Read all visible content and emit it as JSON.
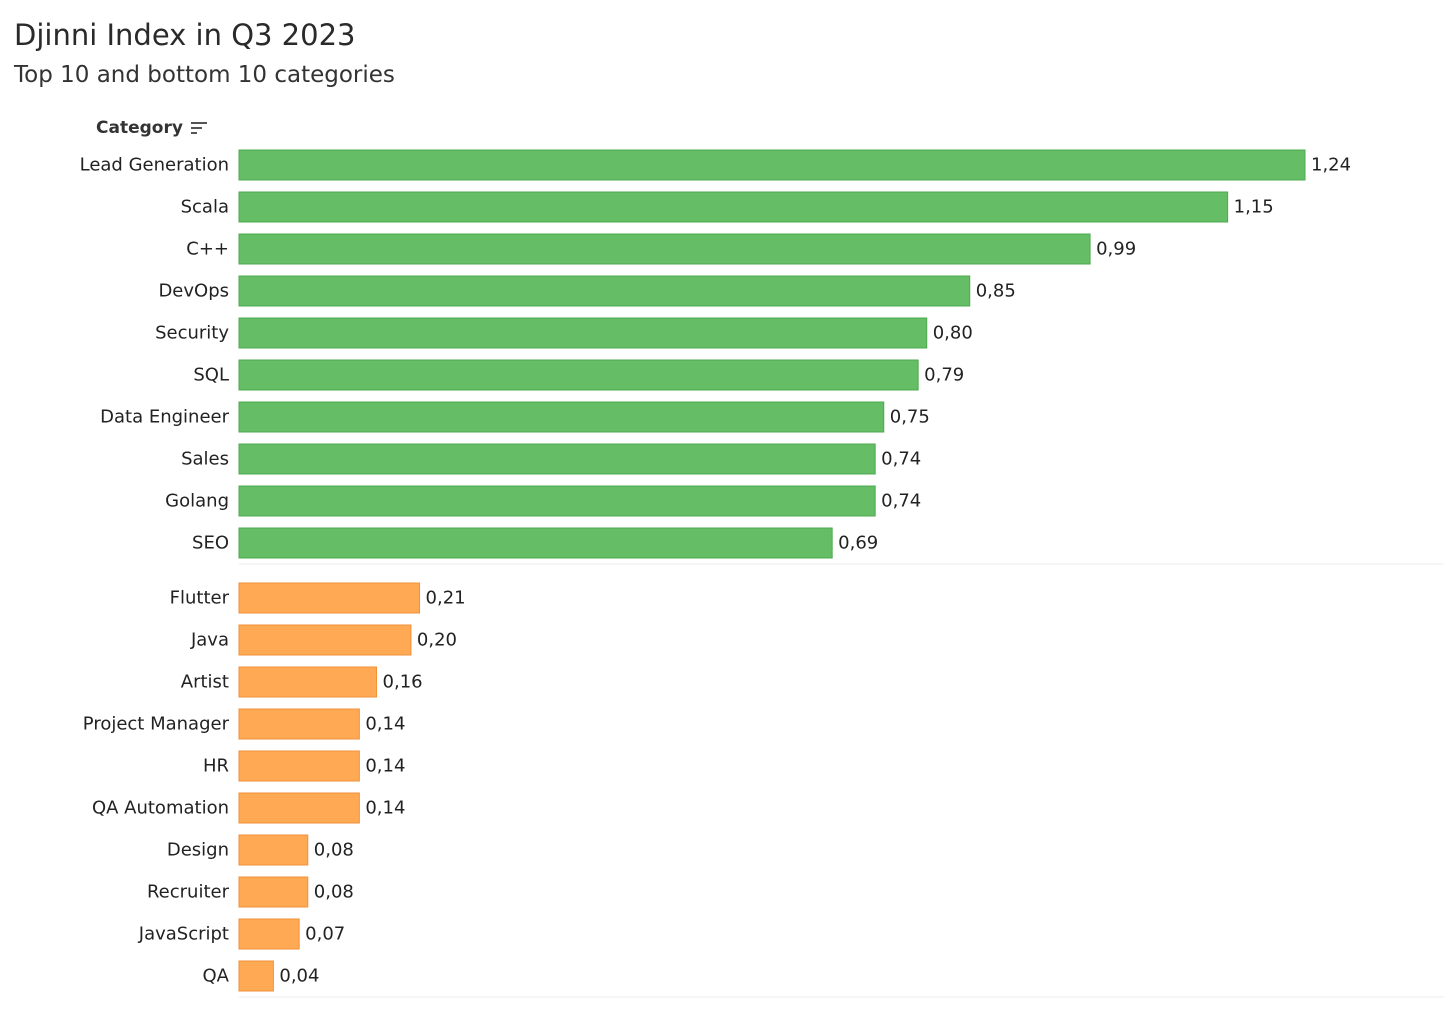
{
  "title": "Djinni Index in Q3 2023",
  "subtitle": "Top 10 and bottom 10 categories",
  "column_header": "Category",
  "colors": {
    "top": "#65be65",
    "top_border": "#4caa4c",
    "bottom": "#ffa954",
    "bottom_border": "#f0923a",
    "separator": "#eeeeee"
  },
  "chart_data": {
    "type": "bar",
    "orientation": "horizontal",
    "xlim": [
      0,
      1.24
    ],
    "groups": [
      {
        "categories": [
          "Lead Generation",
          "Scala",
          "C++",
          "DevOps",
          "Security",
          "SQL",
          "Data Engineer",
          "Sales",
          "Golang",
          "SEO"
        ],
        "values": [
          1.24,
          1.15,
          0.99,
          0.85,
          0.8,
          0.79,
          0.75,
          0.74,
          0.74,
          0.69
        ],
        "labels": [
          "1,24",
          "1,15",
          "0,99",
          "0,85",
          "0,80",
          "0,79",
          "0,75",
          "0,74",
          "0,74",
          "0,69"
        ],
        "color": "#65be65"
      },
      {
        "categories": [
          "Flutter",
          "Java",
          "Artist",
          "Project Manager",
          "HR",
          "QA Automation",
          "Design",
          "Recruiter",
          "JavaScript",
          "QA"
        ],
        "values": [
          0.21,
          0.2,
          0.16,
          0.14,
          0.14,
          0.14,
          0.08,
          0.08,
          0.07,
          0.04
        ],
        "labels": [
          "0,21",
          "0,20",
          "0,16",
          "0,14",
          "0,14",
          "0,14",
          "0,08",
          "0,08",
          "0,07",
          "0,04"
        ],
        "color": "#ffa954"
      }
    ]
  }
}
